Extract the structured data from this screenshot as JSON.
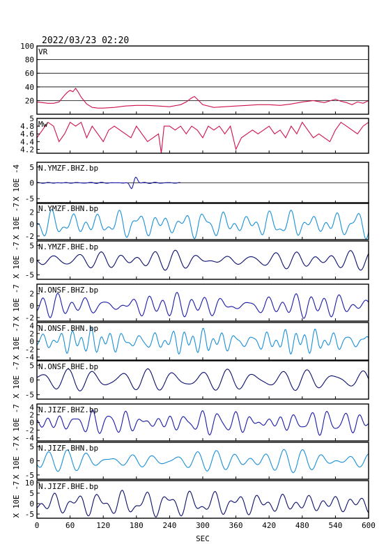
{
  "header": {
    "timestamp": "2022/03/23  02:20"
  },
  "x_axis": {
    "label": "SEC",
    "range": [
      0,
      600
    ],
    "ticks": [
      0,
      60,
      120,
      180,
      240,
      300,
      360,
      420,
      480,
      540,
      600
    ]
  },
  "colors": {
    "frame": "#000000",
    "vr": "#d0104a",
    "mw": "#d0104a",
    "dark_blue": "#0a0f6b",
    "blue": "#1a1aa8",
    "light_blue": "#1a8fd6"
  },
  "chart_data": [
    {
      "type": "line",
      "label": "VR",
      "ylim": [
        0,
        100
      ],
      "yticks": [
        20,
        40,
        60,
        80,
        100
      ],
      "grid": true,
      "x": [
        0,
        10,
        20,
        30,
        40,
        50,
        55,
        60,
        65,
        70,
        75,
        80,
        90,
        100,
        110,
        120,
        140,
        160,
        180,
        200,
        220,
        240,
        260,
        270,
        280,
        285,
        290,
        300,
        320,
        340,
        360,
        380,
        400,
        420,
        440,
        460,
        480,
        500,
        520,
        540,
        550,
        560,
        570,
        580,
        590,
        600
      ],
      "values": [
        18,
        17,
        16,
        16,
        18,
        28,
        32,
        35,
        33,
        38,
        32,
        25,
        15,
        10,
        9,
        9,
        10,
        12,
        13,
        13,
        12,
        11,
        14,
        18,
        24,
        26,
        22,
        14,
        10,
        11,
        12,
        13,
        14,
        14,
        13,
        15,
        18,
        20,
        17,
        22,
        19,
        17,
        14,
        18,
        16,
        20
      ]
    },
    {
      "type": "line",
      "label": "Mw",
      "ylim": [
        4.1,
        5.0
      ],
      "yticks": [
        4.2,
        4.4,
        4.6,
        4.8,
        5.0
      ],
      "x": [
        0,
        10,
        20,
        30,
        40,
        50,
        60,
        70,
        80,
        90,
        100,
        110,
        120,
        130,
        140,
        150,
        160,
        170,
        180,
        190,
        200,
        210,
        220,
        225,
        230,
        240,
        250,
        260,
        270,
        280,
        290,
        300,
        310,
        320,
        330,
        340,
        350,
        360,
        370,
        380,
        390,
        400,
        410,
        420,
        430,
        440,
        450,
        460,
        470,
        480,
        490,
        500,
        510,
        520,
        530,
        540,
        550,
        560,
        570,
        580,
        590,
        600
      ],
      "values": [
        4.5,
        4.7,
        4.9,
        4.8,
        4.4,
        4.6,
        4.9,
        4.8,
        4.9,
        4.5,
        4.8,
        4.6,
        4.4,
        4.7,
        4.8,
        4.7,
        4.6,
        4.5,
        4.8,
        4.6,
        4.4,
        4.5,
        4.6,
        4.1,
        4.8,
        4.8,
        4.7,
        4.8,
        4.6,
        4.8,
        4.7,
        4.5,
        4.8,
        4.7,
        4.8,
        4.6,
        4.8,
        4.2,
        4.5,
        4.6,
        4.7,
        4.6,
        4.7,
        4.8,
        4.6,
        4.7,
        4.5,
        4.8,
        4.6,
        4.9,
        4.7,
        4.5,
        4.6,
        4.5,
        4.4,
        4.7,
        4.9,
        4.8,
        4.7,
        4.6,
        4.8,
        4.9
      ]
    },
    {
      "type": "line",
      "label": "N.YMZF.BHZ.bp",
      "ylabel": "X 10E -4",
      "ylim": [
        -6.5,
        6.5
      ],
      "yticks": [
        -5,
        0,
        5
      ],
      "color": "blue",
      "zero_line": true,
      "trace": {
        "amp": 0.5,
        "period": 20,
        "seed": 3,
        "end": 260,
        "burst_center": 175,
        "burst_amp": 3.0
      }
    },
    {
      "type": "line",
      "label": "N.YMZF.BHN.bp",
      "ylabel": "X 10E -7",
      "ylim": [
        -2.6,
        3.6
      ],
      "yticks": [
        -2,
        0,
        2
      ],
      "color": "light_blue",
      "trace": {
        "amp": 1.8,
        "period": 28,
        "seed": 5
      }
    },
    {
      "type": "line",
      "label": "N.YMZF.BHE.bp",
      "ylabel": "X 10E -7",
      "ylim": [
        -6.5,
        6.5
      ],
      "yticks": [
        -5,
        0,
        5
      ],
      "color": "dark_blue",
      "trace": {
        "amp": 3.0,
        "period": 32,
        "seed": 7
      }
    },
    {
      "type": "line",
      "label": "N.ONSF.BHZ.bp",
      "ylabel": "X 10E -7",
      "ylim": [
        -2.6,
        3.6
      ],
      "yticks": [
        -2,
        0,
        2
      ],
      "color": "blue",
      "trace": {
        "amp": 1.9,
        "period": 30,
        "seed": 11
      }
    },
    {
      "type": "line",
      "label": "N.ONSF.BHN.bp",
      "ylabel": "X 10E -7",
      "ylim": [
        -4.8,
        4.8
      ],
      "yticks": [
        -4,
        -2,
        0,
        2,
        4
      ],
      "color": "light_blue",
      "trace": {
        "amp": 2.6,
        "period": 26,
        "seed": 13
      }
    },
    {
      "type": "line",
      "label": "N.ONSF.BHE.bp",
      "ylabel": "X 10E -7",
      "ylim": [
        -6.5,
        6.5
      ],
      "yticks": [
        -5,
        0,
        5
      ],
      "color": "dark_blue",
      "trace": {
        "amp": 3.0,
        "period": 34,
        "seed": 17
      }
    },
    {
      "type": "line",
      "label": "N.JIZF.BHZ.bp",
      "ylabel": "X 10E -7",
      "ylim": [
        -4.8,
        4.8
      ],
      "yticks": [
        -4,
        -2,
        0,
        2,
        4
      ],
      "color": "blue",
      "trace": {
        "amp": 2.3,
        "period": 25,
        "seed": 19
      }
    },
    {
      "type": "line",
      "label": "N.JIZF.BHN.bp",
      "ylabel": "X 10E -7",
      "ylim": [
        -6.5,
        6.5
      ],
      "yticks": [
        -5,
        0,
        5
      ],
      "color": "light_blue",
      "trace": {
        "amp": 3.0,
        "period": 27,
        "seed": 23
      }
    },
    {
      "type": "line",
      "label": "N.JIZF.BHE.bp",
      "ylabel": "X 10E -7",
      "ylim": [
        -7,
        11
      ],
      "yticks": [
        -5,
        0,
        5,
        10
      ],
      "color": "dark_blue",
      "trace": {
        "amp": 4.2,
        "period": 29,
        "seed": 29
      }
    }
  ]
}
